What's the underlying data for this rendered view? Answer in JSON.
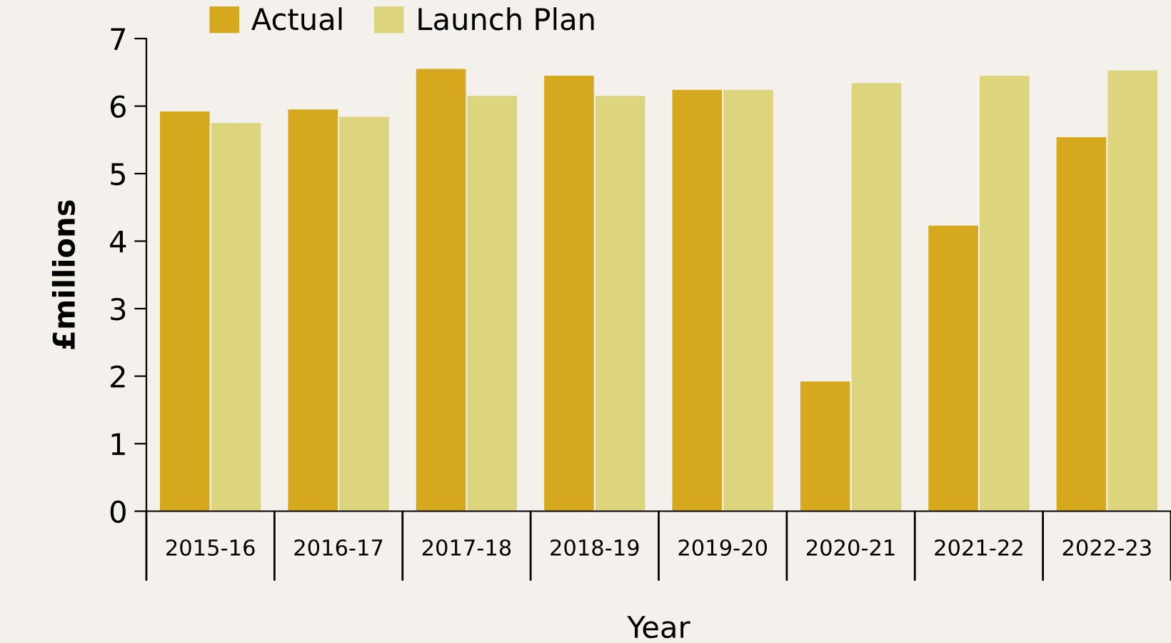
{
  "chart_data": {
    "type": "bar",
    "xlabel": "Year",
    "ylabel": "£millions",
    "categories": [
      "2015-16",
      "2016-17",
      "2017-18",
      "2018-19",
      "2019-20",
      "2020-21",
      "2021-22",
      "2022-23"
    ],
    "series": [
      {
        "name": "Actual",
        "color": "#d6a81e",
        "values": [
          5.92,
          5.95,
          6.55,
          6.45,
          6.24,
          1.92,
          4.23,
          5.54
        ]
      },
      {
        "name": "Launch Plan",
        "color": "#ddd47e",
        "values": [
          5.75,
          5.84,
          6.15,
          6.15,
          6.24,
          6.34,
          6.45,
          6.53
        ]
      }
    ],
    "ylim": [
      0,
      7
    ],
    "yticks": [
      0,
      1,
      2,
      3,
      4,
      5,
      6,
      7
    ],
    "legend": "top left",
    "grid": false
  }
}
